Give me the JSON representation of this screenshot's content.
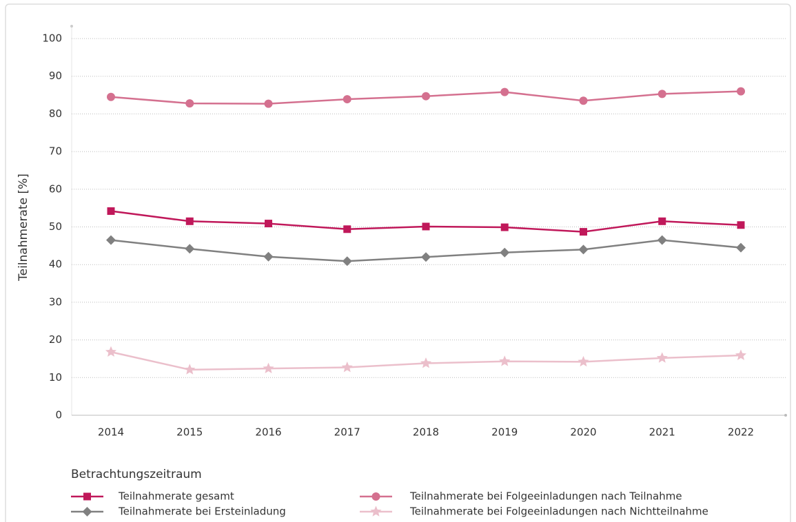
{
  "chart_data": {
    "type": "line",
    "y_label": "Teilnahmerate [%]",
    "legend_title": "Betrachtungszeitraum",
    "categories": [
      "2014",
      "2015",
      "2016",
      "2017",
      "2018",
      "2019",
      "2020",
      "2021",
      "2022"
    ],
    "series": [
      {
        "name": "Teilnahmerate gesamt",
        "color": "#c0185a",
        "marker": "square",
        "values": [
          54.2,
          51.5,
          50.9,
          49.4,
          50.1,
          49.9,
          48.7,
          51.5,
          50.5
        ]
      },
      {
        "name": "Teilnahmerate bei Folgeeinladungen nach Teilnahme",
        "color": "#d4708f",
        "marker": "circle",
        "values": [
          84.5,
          82.8,
          82.7,
          83.9,
          84.7,
          85.8,
          83.5,
          85.3,
          86.0
        ]
      },
      {
        "name": "Teilnahmerate bei Ersteinladung",
        "color": "#808080",
        "marker": "diamond",
        "values": [
          46.5,
          44.2,
          42.1,
          40.9,
          42.0,
          43.2,
          44.0,
          46.5,
          44.5
        ]
      },
      {
        "name": "Teilnahmerate bei Folgeeinladungen nach Nichtteilnahme",
        "color": "#ebbfcb",
        "marker": "star",
        "values": [
          16.8,
          12.1,
          12.4,
          12.7,
          13.8,
          14.3,
          14.2,
          15.2,
          15.9
        ]
      }
    ],
    "ylim": [
      0,
      100
    ],
    "yticks": [
      0,
      10,
      20,
      30,
      40,
      50,
      60,
      70,
      80,
      90,
      100
    ],
    "grid": true
  }
}
